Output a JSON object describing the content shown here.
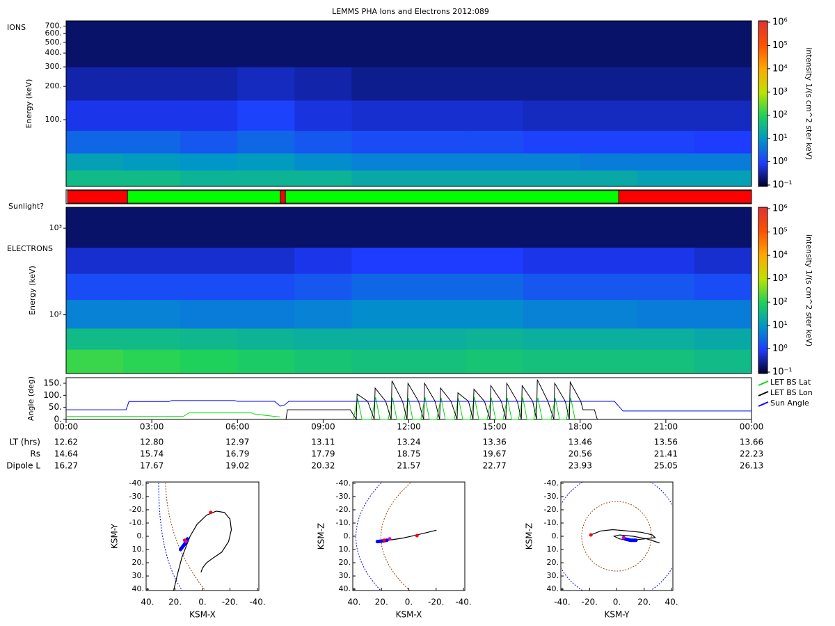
{
  "chart_data": [
    {
      "type": "heatmap",
      "title": "LEMMS PHA Ions and Electrons  2012:089",
      "label": "IONS",
      "y_label": "Energy (keV)",
      "xlim": [
        0,
        24
      ],
      "x_edges": [
        0,
        2,
        4,
        6,
        8,
        10,
        12,
        14,
        16,
        18,
        20,
        22,
        24
      ],
      "ylim": [
        25,
        780
      ],
      "y_log": true,
      "y_edges": [
        25,
        35,
        50,
        80,
        150,
        300,
        780
      ],
      "yticks": [
        {
          "value": 100,
          "label": "100."
        },
        {
          "value": 200,
          "label": "200."
        },
        {
          "value": 300,
          "label": "300."
        },
        {
          "value": 400,
          "label": "400."
        },
        {
          "value": 500,
          "label": "500."
        },
        {
          "value": 600,
          "label": "600."
        },
        {
          "value": 700,
          "label": "700."
        }
      ],
      "z": [
        [
          40,
          40,
          30,
          30,
          30,
          20,
          20,
          20,
          20,
          20,
          15,
          15
        ],
        [
          15,
          12,
          10,
          12,
          8,
          6,
          6,
          6,
          6,
          5,
          5,
          5
        ],
        [
          3,
          3,
          2,
          3,
          2,
          1.5,
          1.5,
          1.5,
          1.2,
          1.2,
          1.2,
          1
        ],
        [
          0.8,
          0.8,
          0.8,
          1.2,
          0.7,
          0.6,
          0.6,
          0.6,
          0.5,
          0.5,
          0.5,
          0.5
        ],
        [
          0.4,
          0.4,
          0.4,
          0.5,
          0.4,
          0.3,
          0.3,
          0.3,
          0.3,
          0.3,
          0.3,
          0.3
        ],
        [
          0.2,
          0.2,
          0.2,
          0.2,
          0.2,
          0.2,
          0.2,
          0.2,
          0.2,
          0.2,
          0.2,
          0.2
        ]
      ],
      "colorbar": {
        "label": "intensity 1/(s cm^2 ster keV)",
        "zlim": [
          0.1,
          1000000
        ],
        "ticks": [
          {
            "value": 0.1,
            "label": "10⁻¹"
          },
          {
            "value": 1,
            "label": "10⁰"
          },
          {
            "value": 10,
            "label": "10¹"
          },
          {
            "value": 100,
            "label": "10²"
          },
          {
            "value": 1000,
            "label": "10³"
          },
          {
            "value": 10000,
            "label": "10⁴"
          },
          {
            "value": 100000,
            "label": "10⁵"
          },
          {
            "value": 1000000,
            "label": "10⁶"
          }
        ]
      }
    },
    {
      "type": "segments",
      "label": "Sunlight?",
      "xlim": [
        0,
        24
      ],
      "segments": [
        {
          "start": 0.05,
          "end": 2.15,
          "color": "#ff0000"
        },
        {
          "start": 2.15,
          "end": 7.5,
          "color": "#00ff00"
        },
        {
          "start": 7.5,
          "end": 7.68,
          "color": "#ff0000"
        },
        {
          "start": 7.68,
          "end": 19.35,
          "color": "#00ff00"
        },
        {
          "start": 19.35,
          "end": 24,
          "color": "#ff0000"
        }
      ]
    },
    {
      "type": "heatmap",
      "label": "ELECTRONS",
      "y_label": "Energy (keV)",
      "xlim": [
        0,
        24
      ],
      "x_edges": [
        0,
        2,
        4,
        6,
        8,
        10,
        12,
        14,
        16,
        18,
        20,
        22,
        24
      ],
      "ylim": [
        21,
        1745
      ],
      "y_log": true,
      "y_edges": [
        21,
        40,
        70,
        150,
        300,
        600,
        1745
      ],
      "yticks": [
        {
          "value": 100,
          "label": "10²"
        },
        {
          "value": 1000,
          "label": "10³"
        }
      ],
      "z": [
        [
          150,
          120,
          100,
          80,
          60,
          50,
          50,
          60,
          50,
          50,
          50,
          40
        ],
        [
          40,
          40,
          35,
          30,
          25,
          25,
          25,
          30,
          25,
          25,
          25,
          20
        ],
        [
          6,
          6,
          5,
          5,
          6,
          8,
          8,
          8,
          6,
          6,
          5,
          5
        ],
        [
          1.5,
          1.5,
          1.5,
          1.5,
          2,
          3,
          3,
          3,
          2,
          2,
          2,
          1.5
        ],
        [
          0.6,
          0.6,
          0.6,
          0.6,
          0.8,
          1,
          1,
          1,
          0.8,
          0.8,
          0.8,
          0.6
        ],
        [
          0.2,
          0.2,
          0.2,
          0.2,
          0.2,
          0.2,
          0.2,
          0.2,
          0.2,
          0.2,
          0.2,
          0.2
        ]
      ],
      "colorbar": {
        "label": "intensity 1/(s cm^2 ster keV)",
        "zlim": [
          0.1,
          1000000
        ],
        "ticks": [
          {
            "value": 0.1,
            "label": "10⁻¹"
          },
          {
            "value": 1,
            "label": "10⁰"
          },
          {
            "value": 10,
            "label": "10¹"
          },
          {
            "value": 100,
            "label": "10²"
          },
          {
            "value": 1000,
            "label": "10³"
          },
          {
            "value": 10000,
            "label": "10⁴"
          },
          {
            "value": 100000,
            "label": "10⁵"
          },
          {
            "value": 1000000,
            "label": "10⁶"
          }
        ]
      }
    },
    {
      "type": "line",
      "y_label": "Angle (deg)",
      "xlim": [
        0,
        24
      ],
      "ylim": [
        0,
        173
      ],
      "yticks": [
        {
          "value": 0,
          "label": "0."
        },
        {
          "value": 50,
          "label": "50."
        },
        {
          "value": 100,
          "label": "100."
        },
        {
          "value": 150,
          "label": "150."
        }
      ],
      "xticks": [
        {
          "value": 0,
          "label": "00:00"
        },
        {
          "value": 3,
          "label": "03:00"
        },
        {
          "value": 6,
          "label": "06:00"
        },
        {
          "value": 9,
          "label": "09:00"
        },
        {
          "value": 12,
          "label": "12:00"
        },
        {
          "value": 15,
          "label": "15:00"
        },
        {
          "value": 18,
          "label": "18:00"
        },
        {
          "value": 21,
          "label": "21:00"
        },
        {
          "value": 24,
          "label": "00:00"
        }
      ],
      "legend": "right",
      "series": [
        {
          "name": "LET BS Lat",
          "color": "#00dd00",
          "x": [
            0,
            4.1,
            4.3,
            6.5,
            6.6,
            7.5,
            7.6,
            10.06,
            10.21,
            10.36,
            10.69,
            10.84,
            10.99,
            11.28,
            11.43,
            11.58,
            11.84,
            11.99,
            12.14,
            12.42,
            12.57,
            12.72,
            12.98,
            13.13,
            13.28,
            13.59,
            13.74,
            13.89,
            14.15,
            14.3,
            14.45,
            14.74,
            14.89,
            15.04,
            15.3,
            15.45,
            15.6,
            15.84,
            15.99,
            16.14,
            16.37,
            16.52,
            16.67,
            16.98,
            17.13,
            17.28,
            17.52,
            17.67,
            17.82
          ],
          "values": [
            12,
            12,
            27,
            27,
            22,
            10,
            null,
            0,
            88,
            0,
            0,
            92,
            0,
            0,
            90,
            0,
            0,
            89,
            0,
            0,
            91,
            0,
            0,
            90,
            0,
            0,
            88,
            0,
            0,
            92,
            0,
            0,
            90,
            0,
            0,
            89,
            0,
            0,
            91,
            0,
            0,
            90,
            0,
            0,
            88,
            0,
            0,
            90,
            0
          ]
        },
        {
          "name": "LET BS Lon",
          "color": "#000000",
          "x": [
            7.7,
            7.75,
            9.95,
            10.16,
            10.19,
            10.56,
            10.79,
            10.82,
            11.19,
            11.38,
            11.41,
            11.78,
            11.94,
            11.97,
            12.34,
            12.52,
            12.55,
            12.92,
            13.08,
            13.11,
            13.48,
            13.69,
            13.72,
            14.09,
            14.25,
            14.28,
            14.65,
            14.84,
            14.87,
            15.24,
            15.4,
            15.43,
            15.8,
            15.94,
            15.97,
            16.34,
            16.47,
            16.5,
            16.87,
            17.08,
            17.11,
            17.48,
            17.62,
            17.65,
            18.02,
            18.1,
            18.5,
            18.6
          ],
          "values": [
            0,
            40,
            40,
            0,
            105,
            75,
            0,
            130,
            75,
            0,
            160,
            75,
            0,
            150,
            75,
            0,
            150,
            75,
            0,
            130,
            75,
            0,
            110,
            75,
            0,
            125,
            75,
            0,
            140,
            75,
            0,
            150,
            75,
            0,
            140,
            75,
            0,
            165,
            75,
            0,
            150,
            75,
            0,
            155,
            75,
            40,
            40,
            0
          ]
        },
        {
          "name": "Sun Angle",
          "color": "#0000ff",
          "x": [
            0,
            2.1,
            2.2,
            3.6,
            3.7,
            5.9,
            6,
            7.3,
            7.5,
            7.65,
            7.8,
            19.2,
            19.5,
            24
          ],
          "values": [
            40,
            40,
            74,
            74,
            78,
            78,
            75,
            75,
            55,
            60,
            75,
            75,
            35,
            35
          ]
        }
      ],
      "ephemeris": [
        {
          "label": "LT (hrs)",
          "values": [
            "12.62",
            "12.80",
            "12.97",
            "13.11",
            "13.24",
            "13.36",
            "13.46",
            "13.56",
            "13.66"
          ]
        },
        {
          "label": "Rs",
          "values": [
            "14.64",
            "15.74",
            "16.79",
            "17.79",
            "18.75",
            "19.67",
            "20.56",
            "21.41",
            "22.23"
          ]
        },
        {
          "label": "Dipole L",
          "values": [
            "16.27",
            "17.67",
            "19.02",
            "20.32",
            "21.57",
            "22.77",
            "23.93",
            "25.05",
            "26.13"
          ]
        }
      ]
    },
    {
      "type": "orbit",
      "x_label": "KSM-X",
      "y_label": "KSM-Y",
      "xlim": [
        41,
        -41
      ],
      "ylim": [
        41,
        -41
      ],
      "xticks": [
        {
          "value": 40,
          "label": "40."
        },
        {
          "value": 20,
          "label": "20."
        },
        {
          "value": 0,
          "label": "0."
        },
        {
          "value": -20,
          "label": "-20."
        },
        {
          "value": -40,
          "label": "-40."
        }
      ],
      "yticks": [
        {
          "value": -40,
          "label": "-40."
        },
        {
          "value": -30,
          "label": "-30."
        },
        {
          "value": -20,
          "label": "-20."
        },
        {
          "value": -10,
          "label": "-10."
        },
        {
          "value": 0,
          "label": "0."
        },
        {
          "value": 10,
          "label": "10."
        },
        {
          "value": 20,
          "label": "20."
        },
        {
          "value": 30,
          "label": "30."
        },
        {
          "value": 40,
          "label": "40."
        }
      ],
      "series": [
        {
          "color": "#000000",
          "x": [
            21,
            18,
            15,
            12,
            9,
            4,
            -3,
            -10,
            -16,
            -20,
            -21,
            -19,
            -14,
            -7,
            -3,
            0,
            1
          ],
          "y": [
            41,
            28,
            16,
            8,
            0,
            -9,
            -16,
            -19,
            -18,
            -13,
            -5,
            4,
            12,
            17,
            20,
            24,
            27
          ]
        },
        {
          "color": "#0000ff",
          "x": [
            16,
            13,
            11
          ],
          "y": [
            10,
            6,
            2
          ]
        }
      ],
      "markers": [
        {
          "x": -6,
          "y": -18,
          "color": "#ff0000"
        },
        {
          "x": 13,
          "y": 3,
          "color": "#ff0000"
        },
        {
          "x": 12,
          "y": 4,
          "color": "#cc00cc"
        }
      ]
    },
    {
      "type": "orbit",
      "x_label": "KSM-X",
      "y_label": "KSM-Z",
      "xlim": [
        41,
        -41
      ],
      "ylim": [
        41,
        -41
      ],
      "xticks": [
        {
          "value": 40,
          "label": "40."
        },
        {
          "value": 20,
          "label": "20."
        },
        {
          "value": 0,
          "label": "0."
        },
        {
          "value": -20,
          "label": "-20."
        },
        {
          "value": -40,
          "label": "-40."
        }
      ],
      "yticks": [
        {
          "value": -40,
          "label": "-40."
        },
        {
          "value": -30,
          "label": "-30."
        },
        {
          "value": -20,
          "label": "-20."
        },
        {
          "value": -10,
          "label": "-10."
        },
        {
          "value": 0,
          "label": "0."
        },
        {
          "value": 10,
          "label": "10."
        },
        {
          "value": 20,
          "label": "20."
        },
        {
          "value": 30,
          "label": "30."
        },
        {
          "value": 40,
          "label": "40."
        }
      ],
      "series": [
        {
          "color": "#000000",
          "x": [
            20,
            12,
            4,
            -4,
            -12,
            -20
          ],
          "y": [
            4,
            2.6,
            1.3,
            -0.6,
            -2.5,
            -4.5
          ]
        },
        {
          "color": "#0000ff",
          "x": [
            23,
            19,
            16
          ],
          "y": [
            4,
            3.5,
            3
          ]
        }
      ],
      "markers": [
        {
          "x": -6,
          "y": -0.5,
          "color": "#ff0000"
        },
        {
          "x": 18,
          "y": 3,
          "color": "#ff0000"
        },
        {
          "x": 14,
          "y": 2,
          "color": "#cc00cc"
        }
      ]
    },
    {
      "type": "orbit",
      "x_label": "KSM-Y",
      "y_label": "KSM-Z",
      "xlim": [
        -41,
        41
      ],
      "ylim": [
        41,
        -41
      ],
      "xticks": [
        {
          "value": -40,
          "label": "-40."
        },
        {
          "value": -20,
          "label": "-20."
        },
        {
          "value": 0,
          "label": "0."
        },
        {
          "value": 20,
          "label": "20."
        },
        {
          "value": 40,
          "label": "40."
        }
      ],
      "yticks": [
        {
          "value": -40,
          "label": "-40."
        },
        {
          "value": -30,
          "label": "-30."
        },
        {
          "value": -20,
          "label": "-20."
        },
        {
          "value": -10,
          "label": "-10."
        },
        {
          "value": 0,
          "label": "0."
        },
        {
          "value": 10,
          "label": "10."
        },
        {
          "value": 20,
          "label": "20."
        },
        {
          "value": 30,
          "label": "30."
        },
        {
          "value": 40,
          "label": "40."
        }
      ],
      "series": [
        {
          "color": "#000000",
          "x": [
            -19,
            -12,
            -3,
            8,
            18,
            26,
            28,
            20,
            10,
            2,
            -2,
            2,
            12,
            22,
            31
          ],
          "y": [
            -1,
            -4,
            -5,
            -4,
            -3,
            -1,
            1,
            2,
            3,
            2,
            0,
            -1,
            0,
            2,
            5
          ]
        },
        {
          "color": "#0000ff",
          "x": [
            6,
            10,
            14
          ],
          "y": [
            2,
            3,
            3
          ]
        }
      ],
      "markers": [
        {
          "x": -19,
          "y": -1,
          "color": "#ff0000"
        },
        {
          "x": 5,
          "y": 1,
          "color": "#cc00cc"
        }
      ]
    }
  ]
}
